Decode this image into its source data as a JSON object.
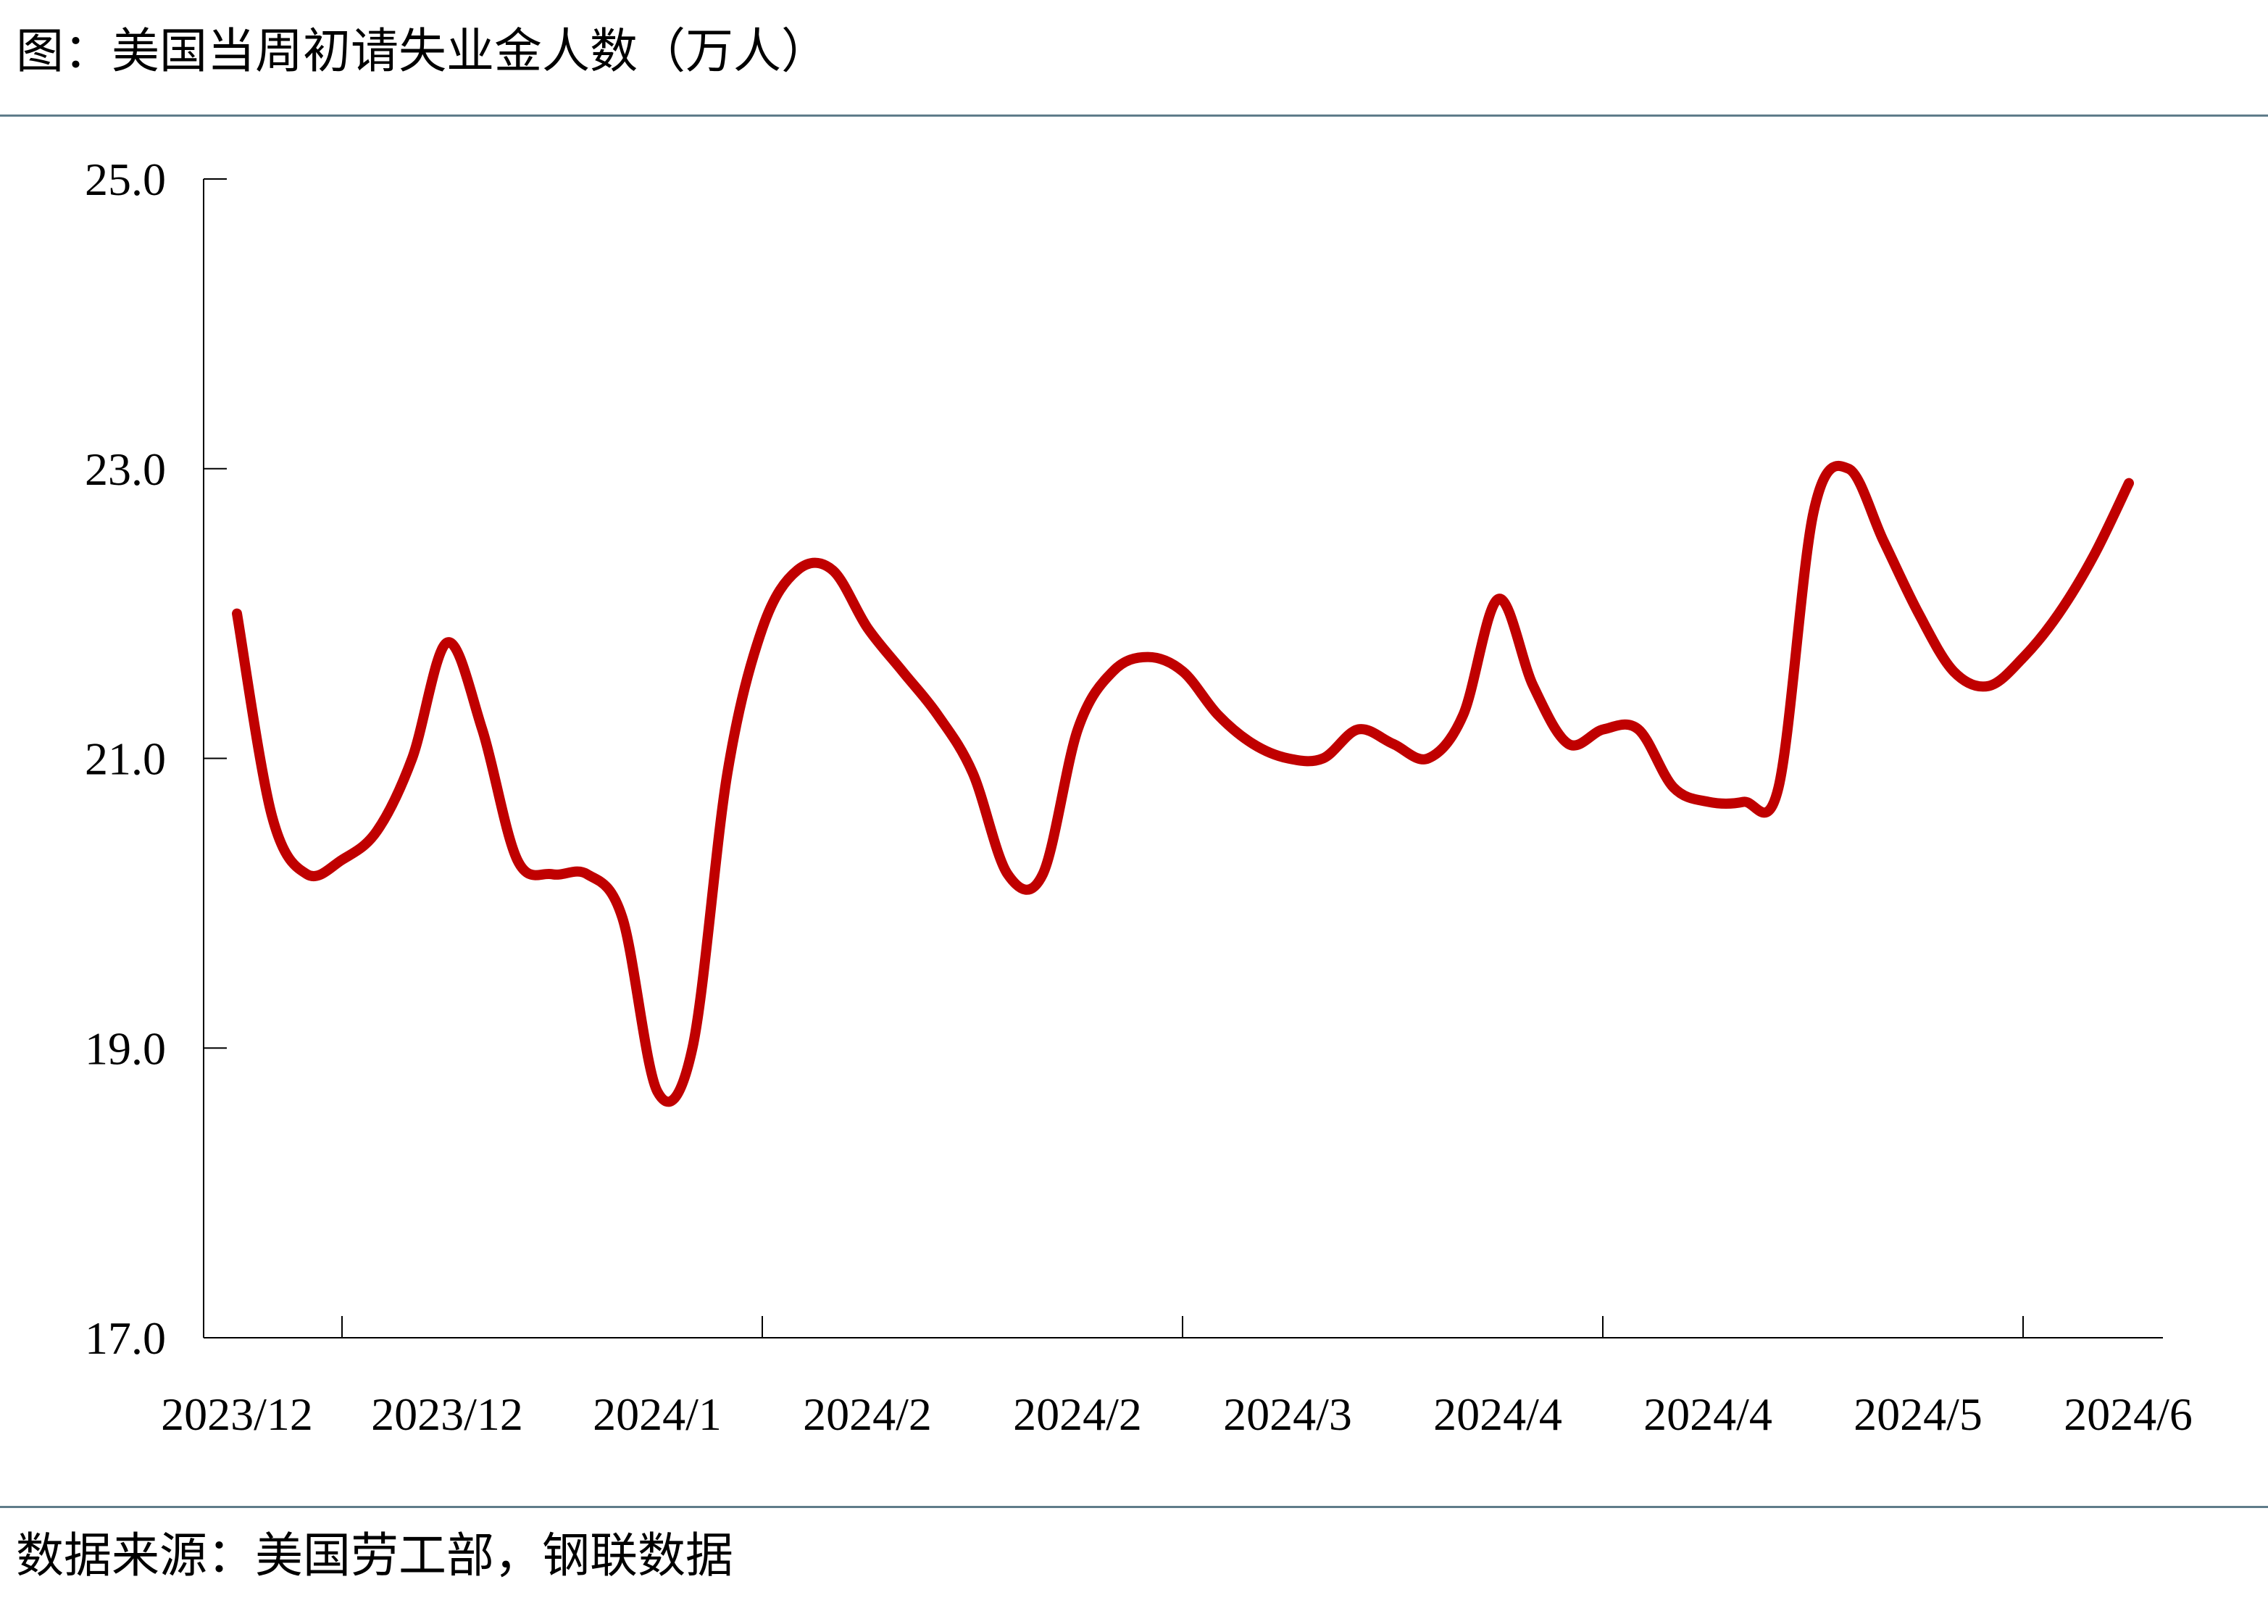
{
  "header": {
    "title": "图：美国当周初请失业金人数（万人）"
  },
  "footer": {
    "source": "数据来源：美国劳工部，钢联数据"
  },
  "colors": {
    "series": "#c00000",
    "axis": "#000000",
    "rule": "#5f7c8a"
  },
  "chart_data": {
    "type": "line",
    "title": "图：美国当周初请失业金人数（万人）",
    "xlabel": "",
    "ylabel": "",
    "ylim": [
      17.0,
      25.0
    ],
    "yticks": [
      "25.0",
      "23.0",
      "21.0",
      "19.0",
      "17.0"
    ],
    "ytick_values": [
      25.0,
      23.0,
      21.0,
      19.0,
      17.0
    ],
    "xtick_labels": [
      "2023/12",
      "2023/12",
      "2024/1",
      "2024/2",
      "2024/2",
      "2024/3",
      "2024/4",
      "2024/4",
      "2024/5",
      "2024/6"
    ],
    "grid": false,
    "legend": "none",
    "series": [
      {
        "values": [
          22.0,
          20.6,
          20.2,
          20.3,
          20.5,
          21.0,
          21.8,
          21.2,
          20.3,
          20.2,
          20.2,
          19.9,
          18.7,
          19.0,
          20.9,
          21.9,
          22.3,
          22.3,
          21.9,
          21.6,
          21.3,
          20.9,
          20.2,
          20.2,
          21.2,
          21.6,
          21.7,
          21.6,
          21.3,
          21.1,
          21.0,
          21.0,
          21.2,
          21.1,
          21.0,
          21.3,
          22.1,
          21.5,
          21.1,
          21.2,
          21.2,
          20.8,
          20.7,
          20.7,
          20.8,
          22.7,
          23.0,
          22.5,
          22.0,
          21.6,
          21.5,
          21.7,
          22.0,
          22.4,
          22.9
        ]
      }
    ]
  }
}
